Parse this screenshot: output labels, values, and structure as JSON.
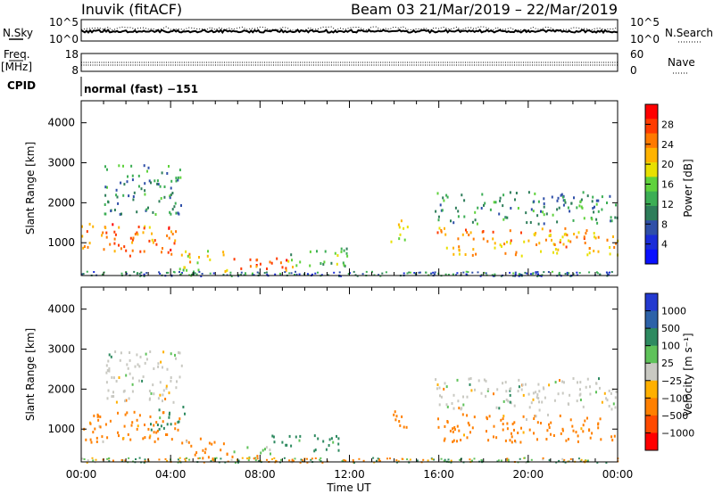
{
  "header": {
    "station": "Inuvik (fitACF)",
    "beam_date": "Beam 03  21/Mar/2019 – 22/Mar/2019",
    "program": "normal (fast) −151"
  },
  "strip1": {
    "left_label": "N.Sky",
    "left_ticks": [
      "10^5",
      "10^0"
    ],
    "right_ticks": [
      "10^5",
      "10^0"
    ],
    "right_label": "N.Search"
  },
  "strip2": {
    "left_label_line1": "Freq.",
    "left_label_line2": "[MHz]",
    "left_ticks": [
      "18",
      "8"
    ],
    "right_ticks": [
      "60",
      "0"
    ],
    "right_label": "Nave",
    "cpid_label": "CPID"
  },
  "time_axis": {
    "ticks": [
      "00:00",
      "04:00",
      "08:00",
      "12:00",
      "16:00",
      "20:00",
      "00:00"
    ],
    "label": "Time UT"
  },
  "chart_data": [
    {
      "type": "heatmap",
      "panel": "power",
      "ylabel": "Slant Range [km]",
      "yticks": [
        "1000",
        "2000",
        "3000",
        "4000"
      ],
      "ylim": [
        180,
        4550
      ],
      "xlim": [
        0,
        24
      ],
      "colorbar_label": "Power [dB]",
      "colorbar_ticks": [
        "28",
        "24",
        "20",
        "16",
        "12",
        "8",
        "4"
      ],
      "colorbar_colors": [
        "#ff0000",
        "#ff3b00",
        "#ff7a00",
        "#ffb300",
        "#e8e000",
        "#5fd23c",
        "#3cae55",
        "#2e7d5a",
        "#2f4fa8",
        "#1a2cd8",
        "#0a10ff"
      ],
      "regions": [
        {
          "x": [
            0.0,
            4.4
          ],
          "y": [
            700,
            1500
          ],
          "value": 24
        },
        {
          "x": [
            4.3,
            6.5
          ],
          "y": [
            300,
            850
          ],
          "value": 18
        },
        {
          "x": [
            6.5,
            9.5
          ],
          "y": [
            300,
            650
          ],
          "value": 24
        },
        {
          "x": [
            9.0,
            12.0
          ],
          "y": [
            450,
            900
          ],
          "value": 14
        },
        {
          "x": [
            13.8,
            14.6
          ],
          "y": [
            1000,
            1600
          ],
          "value": 18
        },
        {
          "x": [
            15.9,
            24.0
          ],
          "y": [
            700,
            1400
          ],
          "value": 22
        },
        {
          "x": [
            1.0,
            4.5
          ],
          "y": [
            1700,
            3000
          ],
          "value": 10
        },
        {
          "x": [
            15.8,
            24.0
          ],
          "y": [
            1500,
            2300
          ],
          "value": 10
        }
      ]
    },
    {
      "type": "heatmap",
      "panel": "velocity",
      "ylabel": "Slant Range [km]",
      "yticks": [
        "1000",
        "2000",
        "3000",
        "4000"
      ],
      "ylim": [
        180,
        4550
      ],
      "xlim": [
        0,
        24
      ],
      "colorbar_label": "Velocity [m s⁻¹]",
      "colorbar_ticks": [
        "1000",
        "500",
        "100",
        "25",
        "−25",
        "−100",
        "−500",
        "−1000"
      ],
      "colorbar_colors": [
        "#2339d0",
        "#2d62a8",
        "#2e8a60",
        "#5fc25a",
        "#c9c9c2",
        "#ffb000",
        "#ff8000",
        "#ff4a00",
        "#ff0000"
      ],
      "regions": [
        {
          "x": [
            0.0,
            4.4
          ],
          "y": [
            700,
            1500
          ],
          "value": -100
        },
        {
          "x": [
            3.0,
            4.6
          ],
          "y": [
            1000,
            1600
          ],
          "value": 100
        },
        {
          "x": [
            4.3,
            6.5
          ],
          "y": [
            300,
            800
          ],
          "value": -100
        },
        {
          "x": [
            6.5,
            8.5
          ],
          "y": [
            300,
            600
          ],
          "value": 25
        },
        {
          "x": [
            8.5,
            11.5
          ],
          "y": [
            450,
            900
          ],
          "value": 100
        },
        {
          "x": [
            13.8,
            14.6
          ],
          "y": [
            1000,
            1600
          ],
          "value": -100
        },
        {
          "x": [
            15.9,
            24.0
          ],
          "y": [
            700,
            1400
          ],
          "value": -100
        },
        {
          "x": [
            1.0,
            4.5
          ],
          "y": [
            1700,
            3000
          ],
          "value": 0
        },
        {
          "x": [
            15.8,
            24.0
          ],
          "y": [
            1500,
            2300
          ],
          "value": 0
        }
      ]
    }
  ]
}
